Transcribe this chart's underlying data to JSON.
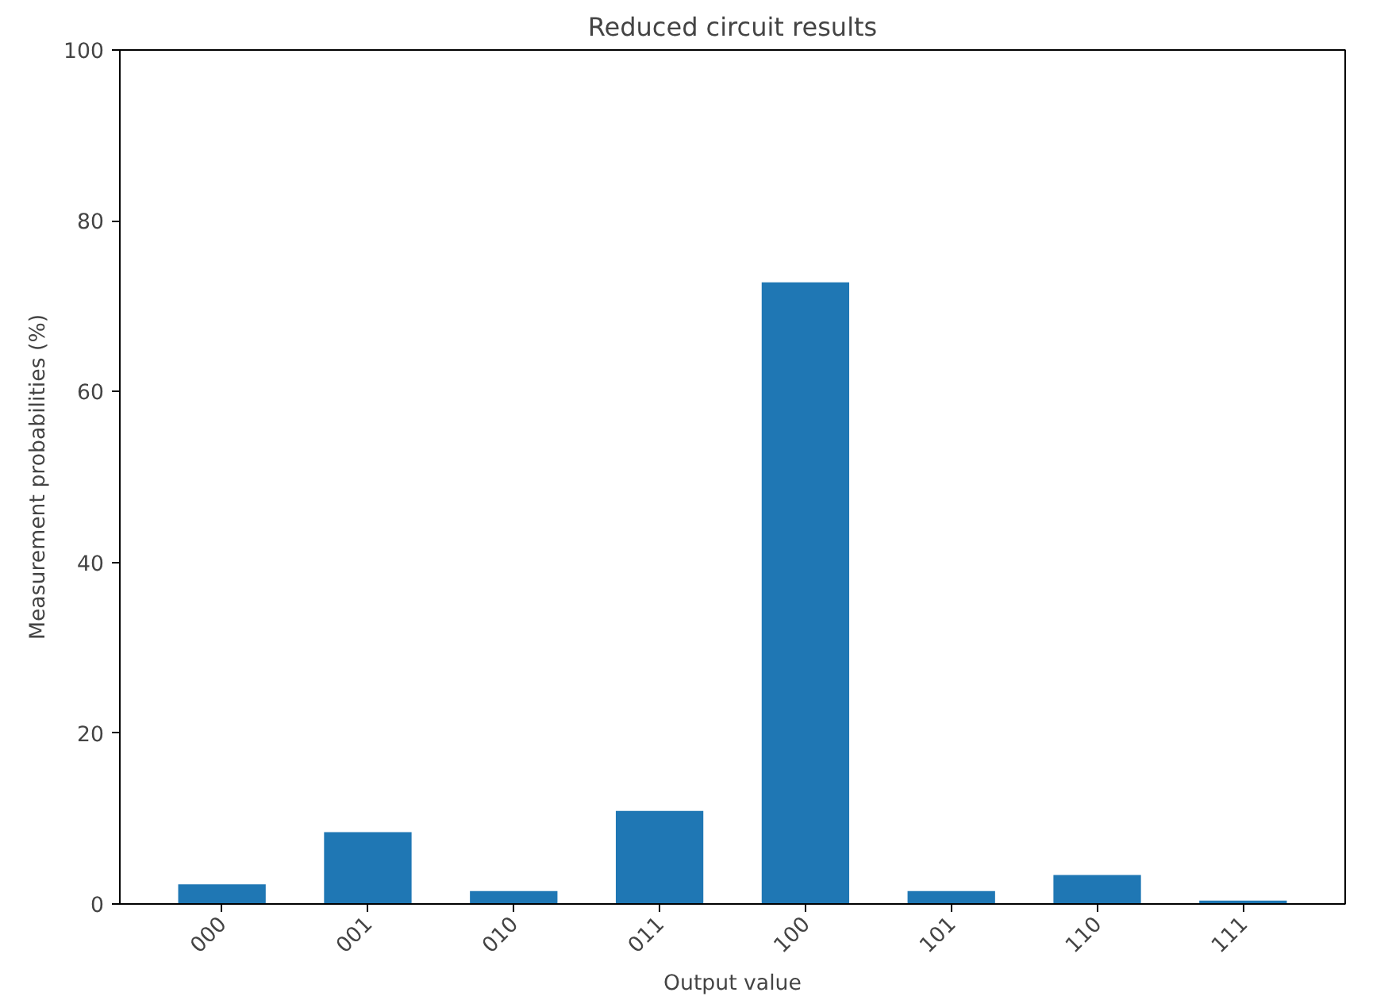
{
  "chart_data": {
    "type": "bar",
    "title": "Reduced circuit results",
    "xlabel": "Output value",
    "ylabel": "Measurement probabilities (%)",
    "categories": [
      "000",
      "001",
      "010",
      "011",
      "100",
      "101",
      "110",
      "111"
    ],
    "values": [
      2.3,
      8.4,
      1.5,
      10.9,
      72.8,
      1.5,
      3.4,
      0.4
    ],
    "color": "#1f77b4",
    "ylim": [
      0,
      100
    ],
    "yticks": [
      0,
      20,
      40,
      60,
      80,
      100
    ],
    "grid": false
  }
}
